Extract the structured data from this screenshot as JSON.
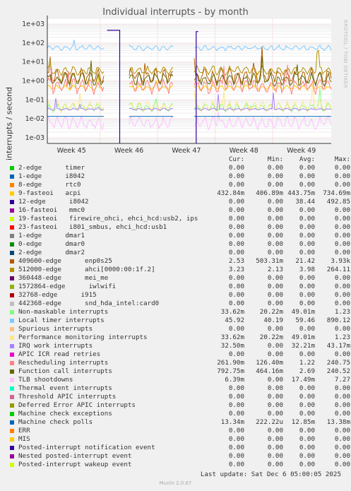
{
  "chart_data": {
    "type": "line",
    "title": "Individual interrupts - by month",
    "ylabel": "interrupts / second",
    "yscale": "log",
    "ylim": [
      0.0005,
      2000
    ],
    "y_ticks": [
      "1e-03",
      "1e-02",
      "1e-01",
      "1e+00",
      "1e+01",
      "1e+02",
      "1e+03"
    ],
    "x_ticks": [
      "Week 45",
      "Week 46",
      "Week 47",
      "Week 48",
      "Week 49"
    ],
    "x_tick_weeks": [
      45,
      46,
      47,
      48,
      49
    ],
    "xlim": [
      44.58,
      49.52
    ],
    "gaps": [
      [
        45.57,
        46.0
      ],
      [
        46.79,
        47.12
      ]
    ],
    "grid": true,
    "legend_placement": "bottom",
    "columns": [
      "Cur:",
      "Min:",
      "Avg:",
      "Max:"
    ],
    "series": [
      {
        "name": "2-edge      timer",
        "color": "#00cc00",
        "cur": "0.00",
        "min": "0.00",
        "avg": "0.00",
        "max": "0.00"
      },
      {
        "name": "1-edge      i8042",
        "color": "#0066b3",
        "cur": "0.00",
        "min": "0.00",
        "avg": "0.00",
        "max": "0.00"
      },
      {
        "name": "8-edge      rtc0",
        "color": "#ff8000",
        "cur": "0.00",
        "min": "0.00",
        "avg": "0.00",
        "max": "0.00"
      },
      {
        "name": "9-fasteoi   acpi",
        "color": "#ffcc00",
        "cur": "432.84m",
        "min": "406.89m",
        "avg": "443.75m",
        "max": "734.69m",
        "level": 0.44,
        "amp": 0.12
      },
      {
        "name": "12-edge      i8042",
        "color": "#330099",
        "cur": "0.00",
        "min": "0.00",
        "avg": "38.44",
        "max": "492.85"
      },
      {
        "name": "16-fasteoi   mmc0",
        "color": "#990099",
        "cur": "0.00",
        "min": "0.00",
        "avg": "0.00",
        "max": "0.00"
      },
      {
        "name": "19-fasteoi   firewire_ohci, ehci_hcd:usb2, ips",
        "color": "#ccff00",
        "cur": "0.00",
        "min": "0.00",
        "avg": "0.00",
        "max": "0.00"
      },
      {
        "name": "23-fasteoi   i801_smbus, ehci_hcd:usb1",
        "color": "#ff0000",
        "cur": "0.00",
        "min": "0.00",
        "avg": "0.00",
        "max": "0.00"
      },
      {
        "name": "1-edge      dmar1",
        "color": "#808080",
        "cur": "0.00",
        "min": "0.00",
        "avg": "0.00",
        "max": "0.00"
      },
      {
        "name": "0-edge      dmar0",
        "color": "#008f00",
        "cur": "0.00",
        "min": "0.00",
        "avg": "0.00",
        "max": "0.00"
      },
      {
        "name": "2-edge      dmar2",
        "color": "#00487d",
        "cur": "0.00",
        "min": "0.00",
        "avg": "0.00",
        "max": "0.00"
      },
      {
        "name": "409600-edge      enp0s25",
        "color": "#b35a00",
        "cur": "2.53",
        "min": "503.31m",
        "avg": "21.42",
        "max": "3.93k",
        "level": 1.8,
        "amp": 0.35
      },
      {
        "name": "512000-edge      ahci[0000:00:1f.2]",
        "color": "#b38f00",
        "cur": "3.23",
        "min": "2.13",
        "avg": "3.98",
        "max": "264.11",
        "level": 3.5,
        "amp": 0.2
      },
      {
        "name": "360448-edge      mei_me",
        "color": "#6b006b",
        "cur": "0.00",
        "min": "0.00",
        "avg": "0.00",
        "max": "0.00"
      },
      {
        "name": "1572864-edge      iwlwifi",
        "color": "#8fb300",
        "cur": "0.00",
        "min": "0.00",
        "avg": "0.00",
        "max": "0.00"
      },
      {
        "name": "32768-edge      i915",
        "color": "#b30000",
        "cur": "0.00",
        "min": "0.00",
        "avg": "0.00",
        "max": "0.00"
      },
      {
        "name": "442368-edge      snd_hda_intel:card0",
        "color": "#bebebe",
        "cur": "0.00",
        "min": "0.00",
        "avg": "0.00",
        "max": "0.00"
      },
      {
        "name": "Non-maskable interrupts",
        "color": "#80ff80",
        "cur": "33.62m",
        "min": "20.22m",
        "avg": "49.01m",
        "max": "1.23",
        "level": 0.04,
        "amp": 0.2
      },
      {
        "name": "Local timer interrupts",
        "color": "#80c9ff",
        "cur": "45.92",
        "min": "40.19",
        "avg": "59.46",
        "max": "890.12",
        "level": 55,
        "amp": 0.12
      },
      {
        "name": "Spurious interrupts",
        "color": "#ffc080",
        "cur": "0.00",
        "min": "0.00",
        "avg": "0.00",
        "max": "0.00"
      },
      {
        "name": "Performance monitoring interrupts",
        "color": "#ffe680",
        "cur": "33.62m",
        "min": "20.22m",
        "avg": "49.01m",
        "max": "1.23",
        "level": 0.045,
        "amp": 0.25
      },
      {
        "name": "IRQ work interrupts",
        "color": "#aa80ff",
        "cur": "32.50m",
        "min": "0.00",
        "avg": "32.21m",
        "max": "43.17m",
        "level": 0.032,
        "amp": 0.05
      },
      {
        "name": "APIC ICR read retries",
        "color": "#ee00cc",
        "cur": "0.00",
        "min": "0.00",
        "avg": "0.00",
        "max": "0.00"
      },
      {
        "name": "Rescheduling interrupts",
        "color": "#ff8080",
        "cur": "261.90m",
        "min": "126.40m",
        "avg": "1.22",
        "max": "240.75",
        "level": 0.5,
        "amp": 0.35
      },
      {
        "name": "Function call interrupts",
        "color": "#666600",
        "cur": "792.75m",
        "min": "464.16m",
        "avg": "2.69",
        "max": "240.52",
        "level": 1.2,
        "amp": 0.3
      },
      {
        "name": "TLB shootdowns",
        "color": "#ffbfff",
        "cur": "6.39m",
        "min": "0.00",
        "avg": "17.49m",
        "max": "7.27",
        "level": 0.006,
        "amp": 0.3
      },
      {
        "name": "Thermal event interrupts",
        "color": "#00ffcc",
        "cur": "0.00",
        "min": "0.00",
        "avg": "0.00",
        "max": "0.00"
      },
      {
        "name": "Threshold APIC interrupts",
        "color": "#cc6699",
        "cur": "0.00",
        "min": "0.00",
        "avg": "0.00",
        "max": "0.00"
      },
      {
        "name": "Deferred Error APIC interrupts",
        "color": "#999900",
        "cur": "0.00",
        "min": "0.00",
        "avg": "0.00",
        "max": "0.00"
      },
      {
        "name": "Machine check exceptions",
        "color": "#00cc00",
        "cur": "0.00",
        "min": "0.00",
        "avg": "0.00",
        "max": "0.00"
      },
      {
        "name": "Machine check polls",
        "color": "#0066b3",
        "cur": "13.34m",
        "min": "222.22u",
        "avg": "12.85m",
        "max": "13.38m",
        "level": 0.0134,
        "amp": 0.0
      },
      {
        "name": "ERR",
        "color": "#ff8000",
        "cur": "0.00",
        "min": "0.00",
        "avg": "0.00",
        "max": "0.00"
      },
      {
        "name": "MIS",
        "color": "#ffcc00",
        "cur": "0.00",
        "min": "0.00",
        "avg": "0.00",
        "max": "0.00"
      },
      {
        "name": "Posted-interrupt notification event",
        "color": "#330099",
        "cur": "0.00",
        "min": "0.00",
        "avg": "0.00",
        "max": "0.00"
      },
      {
        "name": "Nested posted-interrupt event",
        "color": "#990099",
        "cur": "0.00",
        "min": "0.00",
        "avg": "0.00",
        "max": "0.00"
      },
      {
        "name": "Posted-interrupt wakeup event",
        "color": "#ccff00",
        "cur": "0.00",
        "min": "0.00",
        "avg": "0.00",
        "max": "0.00"
      }
    ]
  },
  "last_update": "Last update: Sat Dec  6 05:00:05 2025",
  "side_brand": "RRDTOOL / TOBI OETIKER",
  "footer": "Munin 2.0.67"
}
